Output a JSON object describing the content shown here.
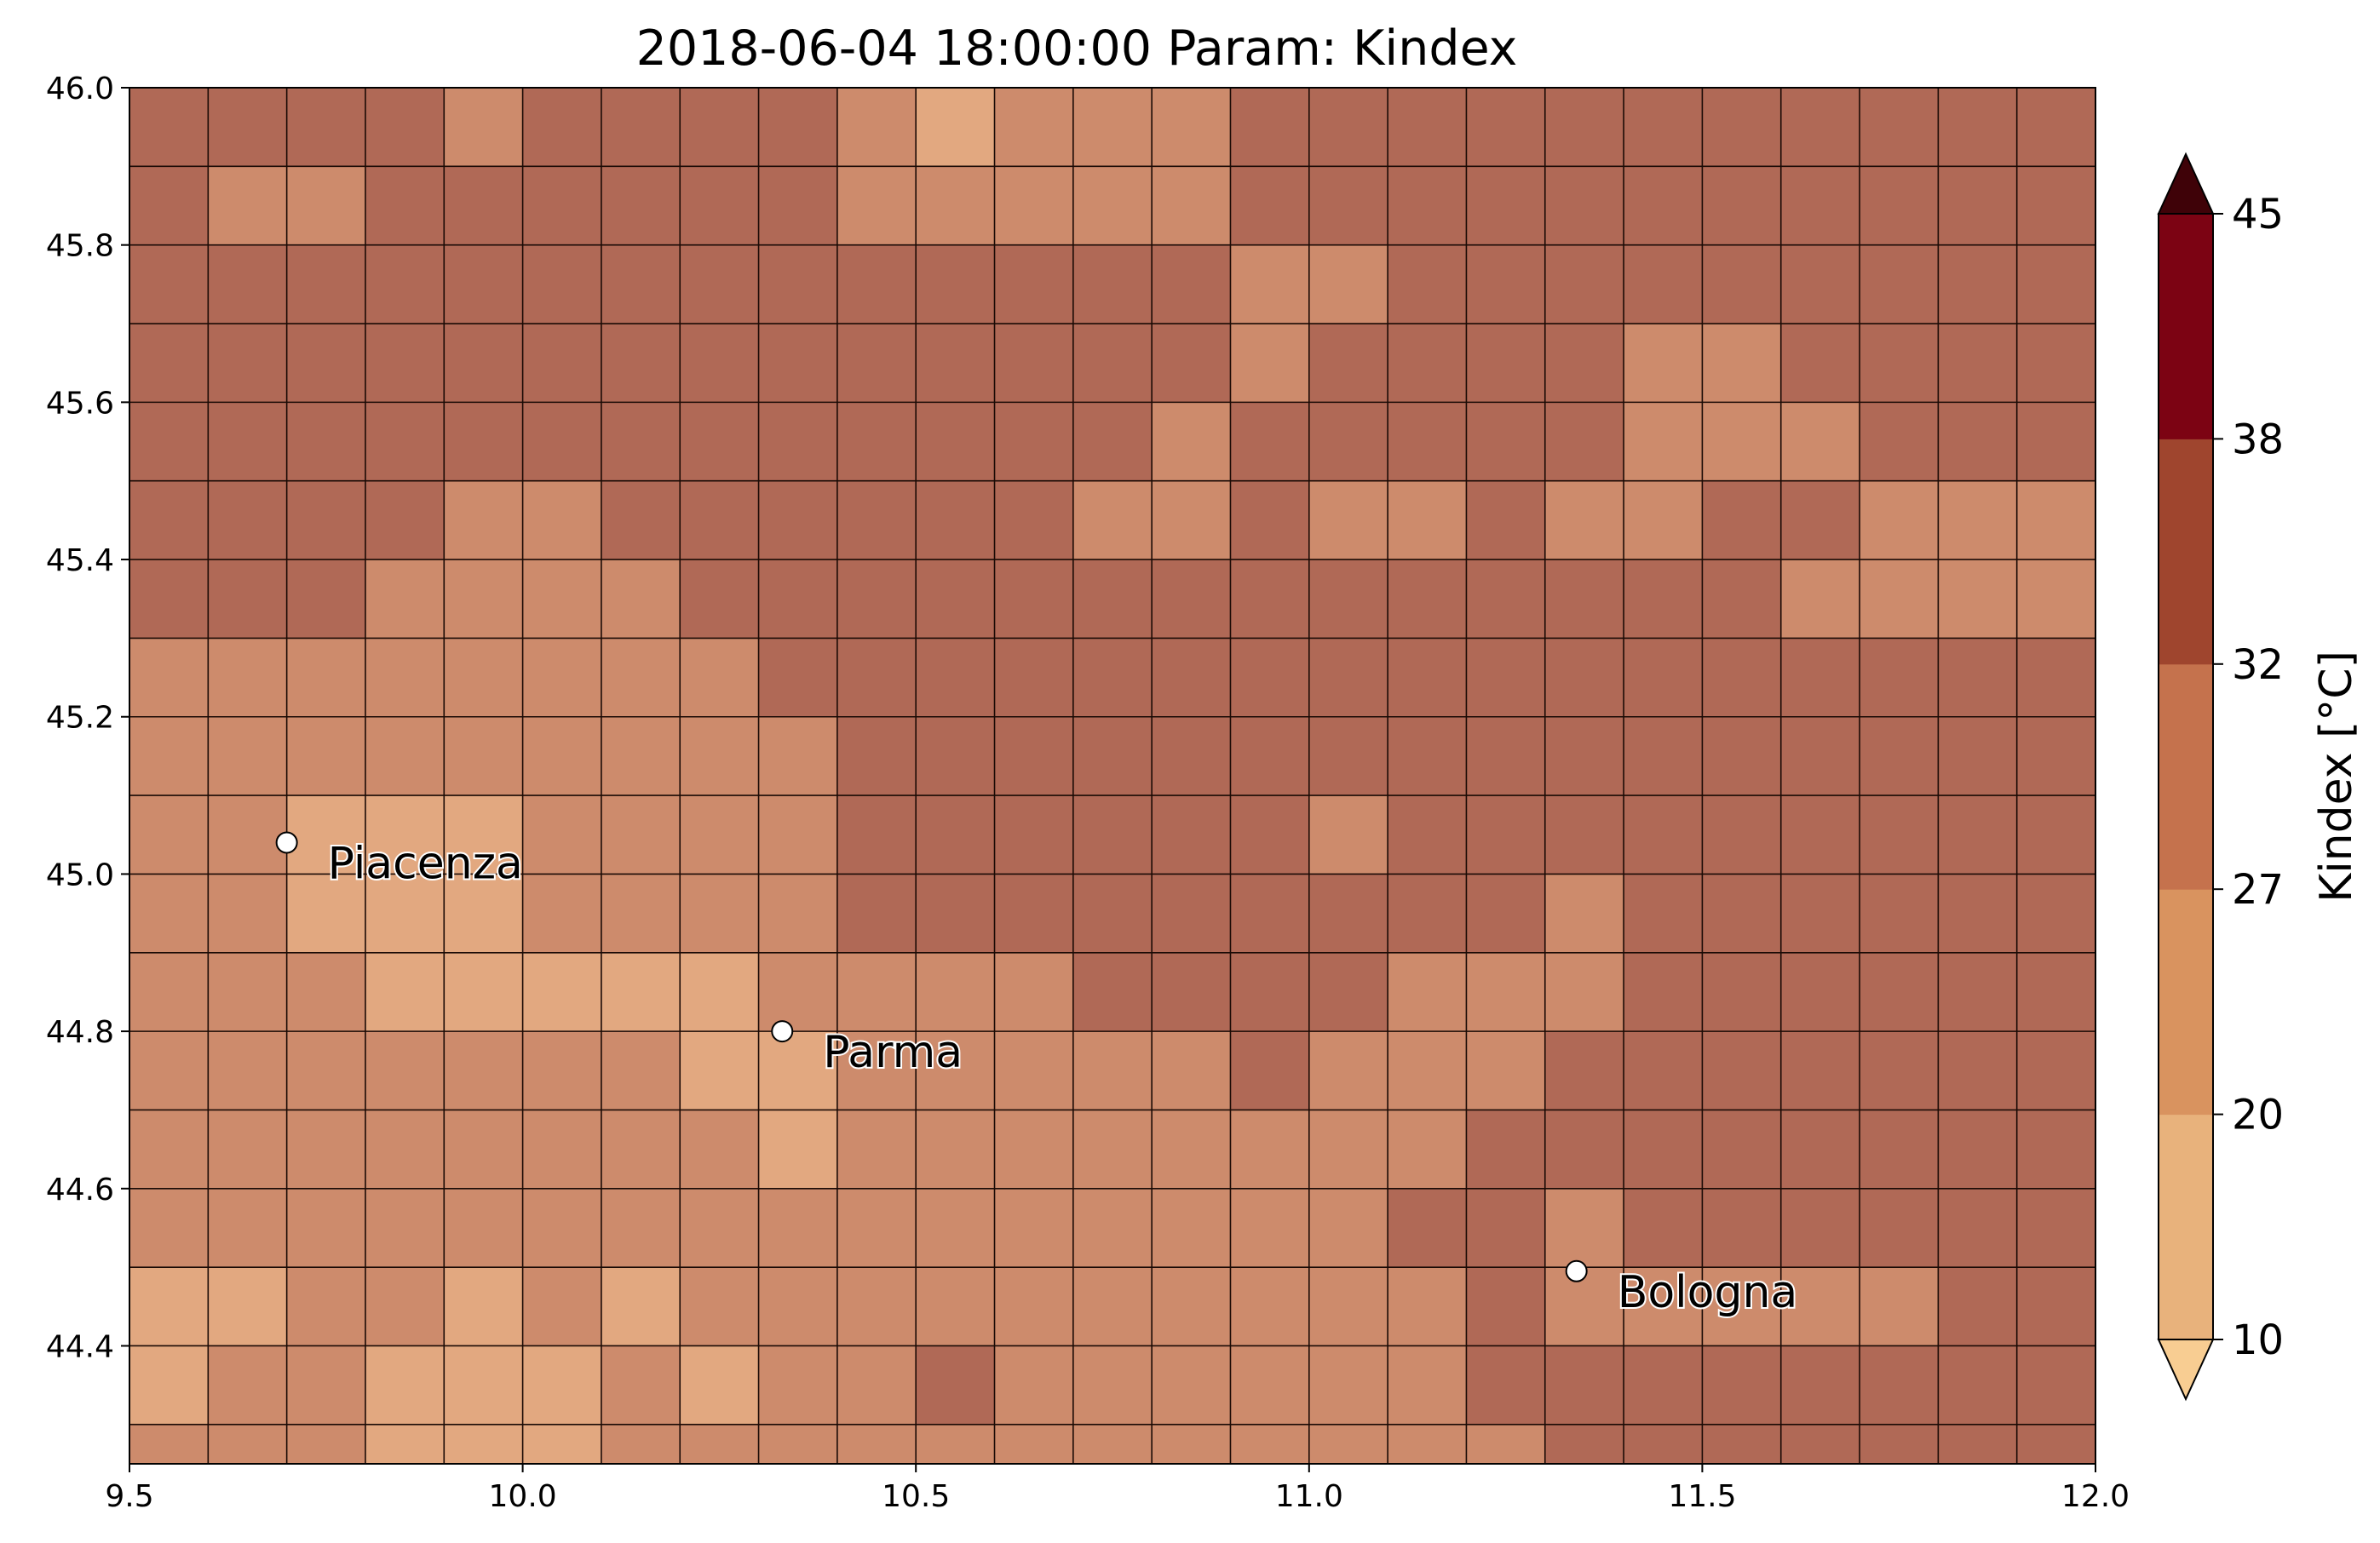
{
  "chart_data": {
    "type": "heatmap",
    "title": "2018-06-04 18:00:00 Param: Kindex",
    "xlim": [
      9.5,
      12.0
    ],
    "ylim": [
      44.25,
      46.0
    ],
    "x_edges": [
      9.5,
      9.6,
      9.7,
      9.8,
      9.9,
      10.0,
      10.1,
      10.2,
      10.3,
      10.4,
      10.5,
      10.6,
      10.7,
      10.8,
      10.9,
      11.0,
      11.1,
      11.2,
      11.3,
      11.4,
      11.5,
      11.6,
      11.7,
      11.8,
      11.9,
      12.0
    ],
    "y_edges": [
      46.0,
      45.9,
      45.8,
      45.7,
      45.6,
      45.5,
      45.4,
      45.3,
      45.2,
      45.1,
      45.0,
      44.9,
      44.8,
      44.7,
      44.6,
      44.5,
      44.4,
      44.3,
      44.25
    ],
    "x_ticks": [
      "9.5",
      "10.0",
      "10.5",
      "11.0",
      "11.5",
      "12.0"
    ],
    "y_ticks": [
      "46.0",
      "45.8",
      "45.6",
      "45.4",
      "45.2",
      "45.0",
      "44.8",
      "44.6",
      "44.4"
    ],
    "grid": true,
    "legend_position": "right (colorbar)",
    "class_colors": [
      "#e2a880",
      "#cd8b6c",
      "#b06956"
    ],
    "values_rows_top_to_bottom": [
      "2222122221011122222222222",
      "2112222221111122222222222",
      "2222222222222211222222222",
      "2222222222222212222112222",
      "2222222222222122222111222",
      "2222112222221121121122111",
      "2221111222222222222221111",
      "1111111122222222222222222",
      "1111111112222222222222222",
      "1100011112222221222222222",
      "1100011112222222221222222",
      "1110000011112222111222222",
      "1111111001111121112222222",
      "1111111101111111122222222",
      "1111111111111111221222222",
      "0011010111111111121111122",
      "0110001011211111122222222",
      "1110001111111111112222222"
    ],
    "colorbar": {
      "label": "Kindex [°C]",
      "levels": [
        "10",
        "20",
        "27",
        "32",
        "38",
        "45"
      ],
      "colors": [
        "#f8cd92",
        "#e8b27c",
        "#d9935f",
        "#c5724d",
        "#9f452e",
        "#7c0313",
        "#3f0208"
      ],
      "extend": "both"
    },
    "cities": [
      {
        "name": "Piacenza",
        "lon": 9.7,
        "lat": 45.04
      },
      {
        "name": "Parma",
        "lon": 10.33,
        "lat": 44.8
      },
      {
        "name": "Bologna",
        "lon": 11.34,
        "lat": 44.495
      }
    ]
  }
}
